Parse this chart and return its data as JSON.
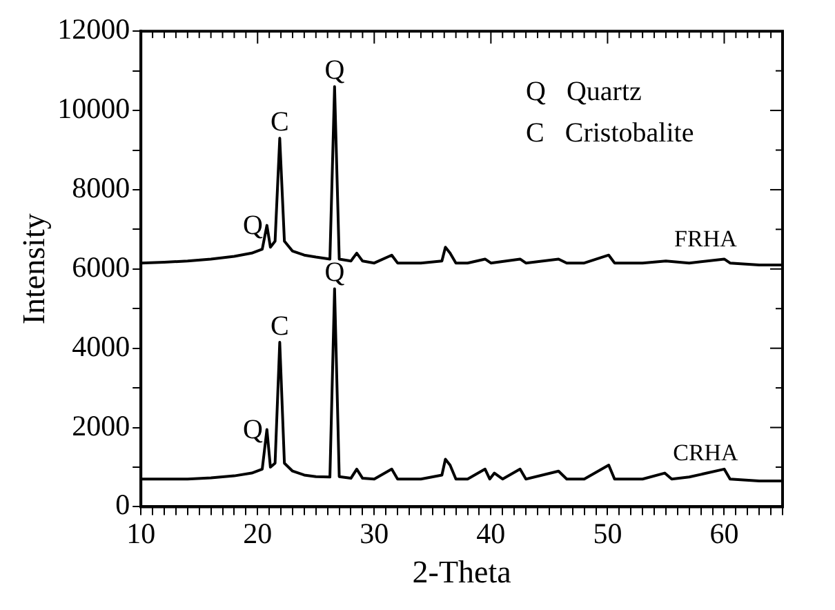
{
  "chart_data": {
    "type": "line",
    "xlabel": "2-Theta",
    "ylabel": "Intensity",
    "xlim": [
      10,
      65
    ],
    "ylim": [
      0,
      12000
    ],
    "xticks": [
      10,
      {
        "value": 11,
        "label": null
      },
      {
        "value": 12,
        "label": null
      },
      {
        "value": 13,
        "label": null
      },
      {
        "value": 14,
        "label": null
      },
      {
        "value": 15,
        "label": null
      },
      {
        "value": 16,
        "label": null
      },
      {
        "value": 17,
        "label": null
      },
      {
        "value": 18,
        "label": null
      },
      {
        "value": 19,
        "label": null
      },
      20,
      {
        "value": 21,
        "label": null
      },
      {
        "value": 22,
        "label": null
      },
      {
        "value": 23,
        "label": null
      },
      {
        "value": 24,
        "label": null
      },
      {
        "value": 25,
        "label": null
      },
      {
        "value": 26,
        "label": null
      },
      {
        "value": 27,
        "label": null
      },
      {
        "value": 28,
        "label": null
      },
      {
        "value": 29,
        "label": null
      },
      30,
      {
        "value": 31,
        "label": null
      },
      {
        "value": 32,
        "label": null
      },
      {
        "value": 33,
        "label": null
      },
      {
        "value": 34,
        "label": null
      },
      {
        "value": 35,
        "label": null
      },
      {
        "value": 36,
        "label": null
      },
      {
        "value": 37,
        "label": null
      },
      {
        "value": 38,
        "label": null
      },
      {
        "value": 39,
        "label": null
      },
      40,
      {
        "value": 41,
        "label": null
      },
      {
        "value": 42,
        "label": null
      },
      {
        "value": 43,
        "label": null
      },
      {
        "value": 44,
        "label": null
      },
      {
        "value": 45,
        "label": null
      },
      {
        "value": 46,
        "label": null
      },
      {
        "value": 47,
        "label": null
      },
      {
        "value": 48,
        "label": null
      },
      {
        "value": 49,
        "label": null
      },
      50,
      {
        "value": 51,
        "label": null
      },
      {
        "value": 52,
        "label": null
      },
      {
        "value": 53,
        "label": null
      },
      {
        "value": 54,
        "label": null
      },
      {
        "value": 55,
        "label": null
      },
      {
        "value": 56,
        "label": null
      },
      {
        "value": 57,
        "label": null
      },
      {
        "value": 58,
        "label": null
      },
      {
        "value": 59,
        "label": null
      },
      60,
      {
        "value": 61,
        "label": null
      },
      {
        "value": 62,
        "label": null
      },
      {
        "value": 63,
        "label": null
      },
      {
        "value": 64,
        "label": null
      },
      {
        "value": 65,
        "label": null
      }
    ],
    "yticks": [
      0,
      {
        "value": 1000,
        "label": null
      },
      2000,
      {
        "value": 3000,
        "label": null
      },
      4000,
      {
        "value": 5000,
        "label": null
      },
      6000,
      {
        "value": 7000,
        "label": null
      },
      8000,
      {
        "value": 9000,
        "label": null
      },
      10000,
      {
        "value": 11000,
        "label": null
      },
      12000
    ],
    "grid": false,
    "legend": "right",
    "marker": "none",
    "line_style": "solid",
    "series": [
      {
        "name": "FRHA",
        "color": "#000000",
        "x": [
          10,
          12,
          14,
          16,
          18,
          19.5,
          20.4,
          20.8,
          21.1,
          21.5,
          21.9,
          22.3,
          23,
          24,
          25,
          26.2,
          26.6,
          27,
          28,
          28.5,
          29,
          30,
          31.5,
          32,
          34,
          35.8,
          36.1,
          36.5,
          37,
          38,
          39.5,
          40,
          42.5,
          43,
          45.8,
          46.5,
          48,
          50.1,
          50.6,
          53,
          55,
          57,
          60,
          60.5,
          63,
          65
        ],
        "values": [
          6150,
          6170,
          6200,
          6250,
          6320,
          6400,
          6500,
          7100,
          6550,
          6700,
          9300,
          6700,
          6450,
          6350,
          6300,
          6250,
          10600,
          6250,
          6200,
          6400,
          6200,
          6150,
          6350,
          6150,
          6150,
          6200,
          6550,
          6400,
          6150,
          6150,
          6250,
          6150,
          6250,
          6150,
          6250,
          6150,
          6150,
          6350,
          6150,
          6150,
          6200,
          6150,
          6250,
          6150,
          6100,
          6100
        ]
      },
      {
        "name": "CRHA",
        "color": "#000000",
        "x": [
          10,
          14,
          16,
          18,
          19.5,
          20.4,
          20.8,
          21.1,
          21.5,
          21.9,
          22.3,
          23,
          24,
          25,
          26.2,
          26.6,
          27,
          28,
          28.5,
          29,
          30,
          31.5,
          32,
          34,
          35.8,
          36.1,
          36.5,
          37,
          38,
          39.5,
          39.9,
          40.3,
          41,
          42.5,
          43,
          45.8,
          46.5,
          48,
          50.1,
          50.6,
          53,
          54.9,
          55.5,
          57,
          60,
          60.5,
          63,
          65
        ],
        "values": [
          700,
          700,
          730,
          780,
          850,
          950,
          1950,
          1000,
          1100,
          4150,
          1100,
          900,
          800,
          760,
          750,
          5500,
          760,
          720,
          950,
          720,
          700,
          950,
          700,
          700,
          800,
          1200,
          1050,
          700,
          700,
          950,
          700,
          850,
          700,
          950,
          700,
          900,
          700,
          700,
          1050,
          700,
          700,
          850,
          700,
          750,
          950,
          700,
          650,
          650
        ]
      }
    ],
    "annotations": [
      {
        "text": "Q",
        "x": 20.8,
        "y": 7100
      },
      {
        "text": "C",
        "x": 21.9,
        "y": 9300
      },
      {
        "text": "Q",
        "x": 26.6,
        "y": 10600
      },
      {
        "text": "Q",
        "x": 20.8,
        "y": 1950
      },
      {
        "text": "C",
        "x": 21.9,
        "y": 4150
      },
      {
        "text": "Q",
        "x": 26.6,
        "y": 5500
      },
      "Q   Quartz",
      "C   Cristobalite"
    ]
  }
}
